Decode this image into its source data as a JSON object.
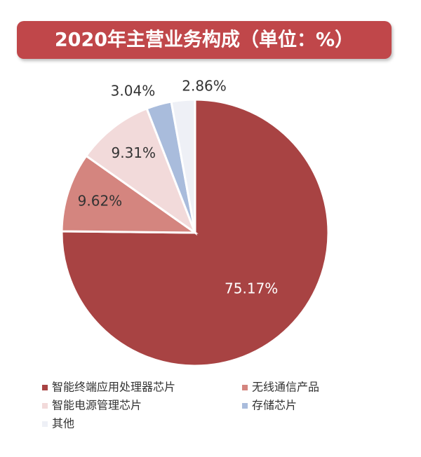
{
  "chart_data": {
    "type": "pie",
    "title": "2020年主营业务构成（单位：%）",
    "categories": [
      "智能终端应用处理器芯片",
      "无线通信产品",
      "智能电源管理芯片",
      "存储芯片",
      "其他"
    ],
    "values": [
      75.17,
      9.62,
      9.31,
      3.04,
      2.86
    ],
    "value_labels": [
      "75.17%",
      "9.62%",
      "9.31%",
      "3.04%",
      "2.86%"
    ],
    "colors": [
      "#a84343",
      "#d4857f",
      "#f2dada",
      "#a9bcdc",
      "#eef0f6"
    ],
    "legend": "bottom"
  }
}
